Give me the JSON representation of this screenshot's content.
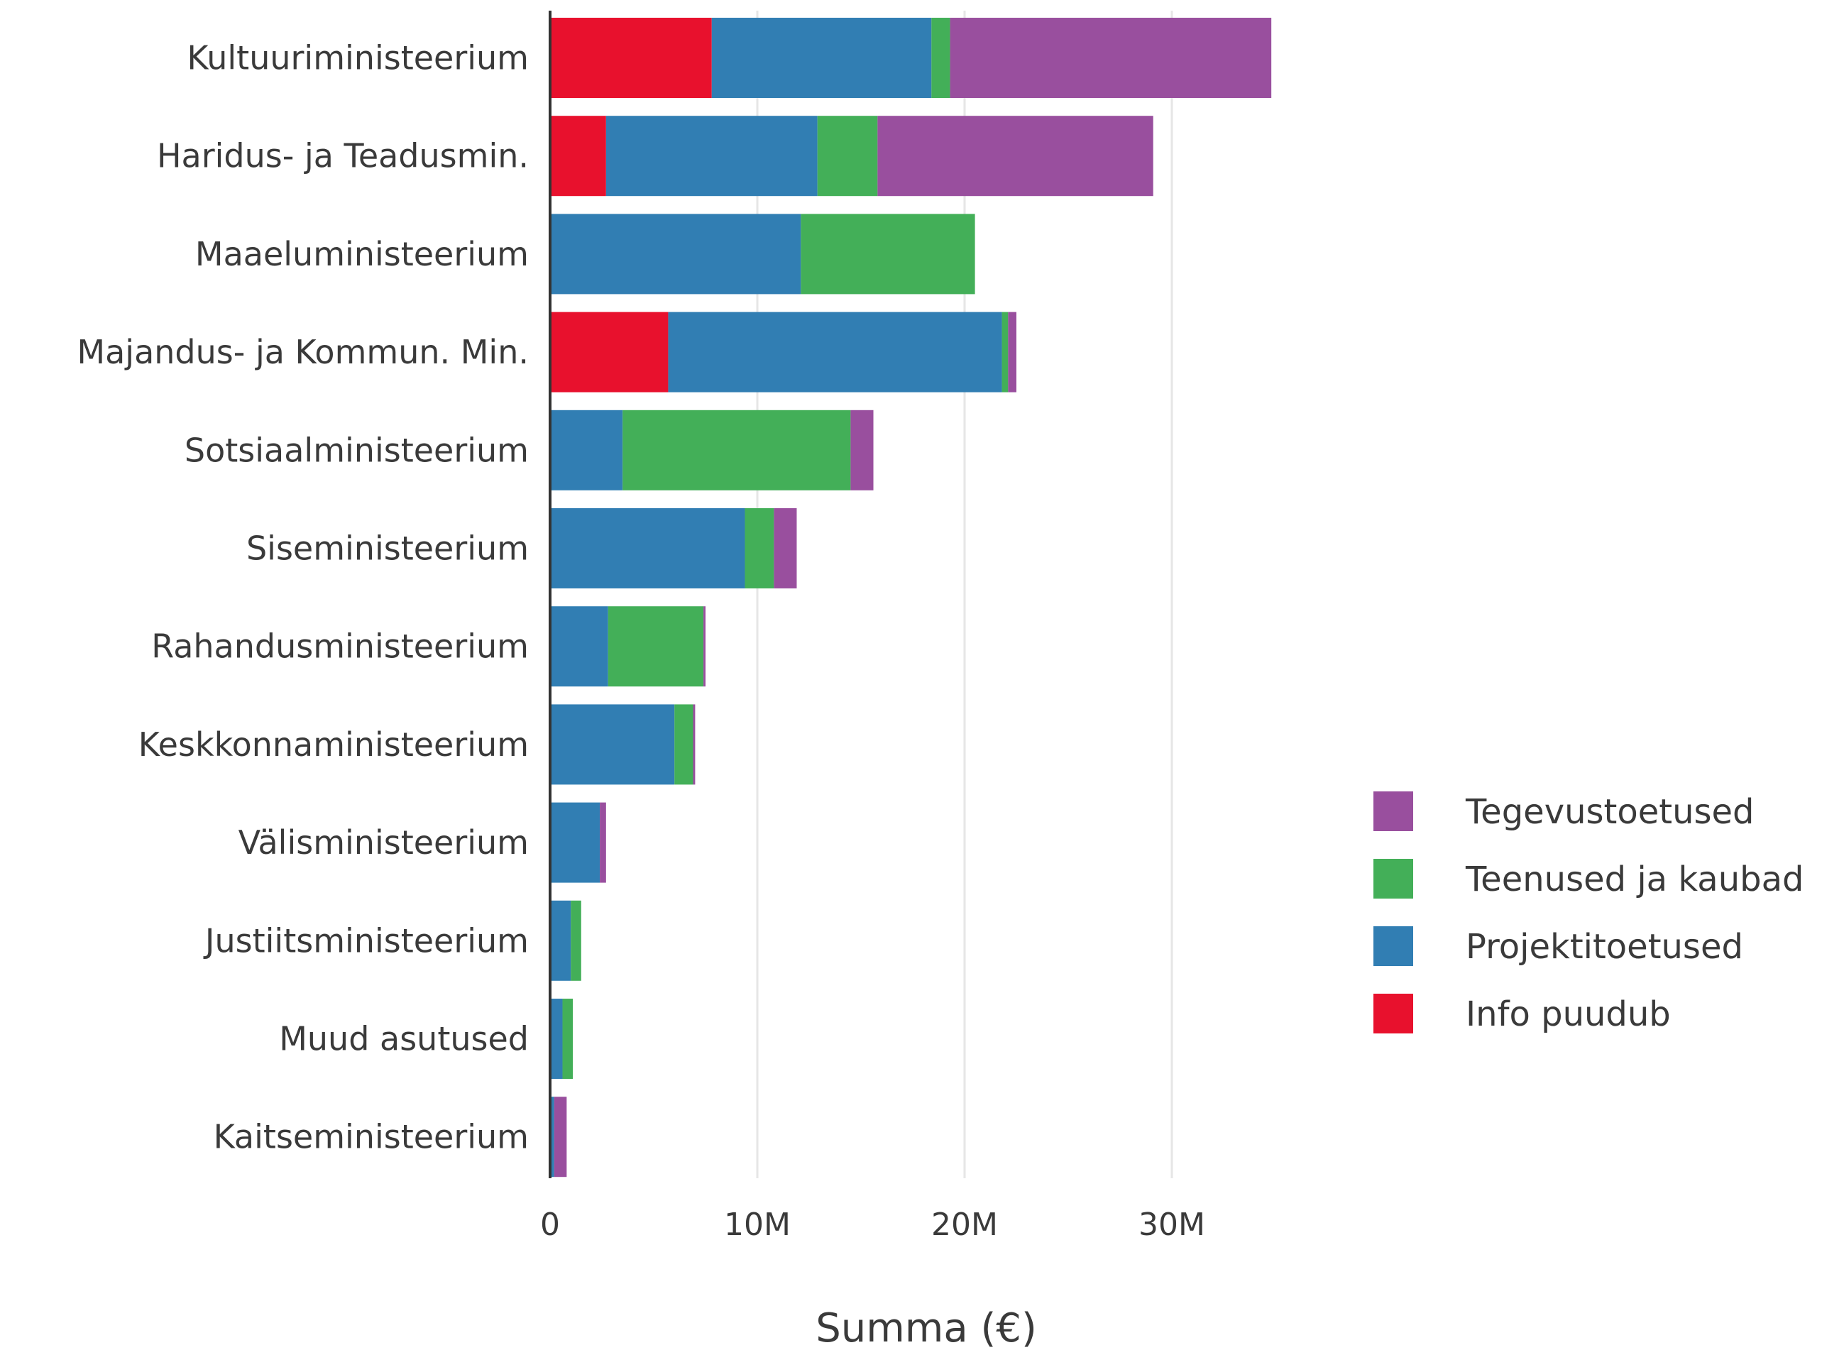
{
  "chart_data": {
    "type": "bar",
    "orientation": "horizontal",
    "stacked": true,
    "categories": [
      "Kultuuriministeerium",
      "Haridus- ja Teadusmin.",
      "Maaeluministeerium",
      "Majandus- ja Kommun. Min.",
      "Sotsiaalministeerium",
      "Siseministeerium",
      "Rahandusministeerium",
      "Keskkonnaministeerium",
      "Välisministeerium",
      "Justiitsministeerium",
      "Muud asutused",
      "Kaitseministeerium"
    ],
    "series": [
      {
        "name": "Info puudub",
        "color": "#E8112D",
        "values": [
          7.8,
          2.7,
          0,
          5.7,
          0,
          0,
          0,
          0,
          0,
          0,
          0,
          0
        ]
      },
      {
        "name": "Projektitoetused",
        "color": "#317EB3",
        "values": [
          10.6,
          10.2,
          12.1,
          16.1,
          3.5,
          9.4,
          2.8,
          6.0,
          2.4,
          1.0,
          0.6,
          0.2
        ]
      },
      {
        "name": "Teenused ja kaubad",
        "color": "#43AF58",
        "values": [
          0.9,
          2.9,
          8.4,
          0.3,
          11.0,
          1.4,
          4.6,
          0.9,
          0,
          0.5,
          0.5,
          0
        ]
      },
      {
        "name": "Tegevustoetused",
        "color": "#994F9E",
        "values": [
          15.5,
          13.3,
          0,
          0.4,
          1.1,
          1.1,
          0.1,
          0.1,
          0.3,
          0,
          0,
          0.6
        ]
      }
    ],
    "xlabel": "Summa (€)",
    "xlim": [
      0,
      40
    ],
    "x_ticks": [
      0,
      10,
      20,
      30
    ],
    "x_tick_labels": [
      "0",
      "10M",
      "20M",
      "30M"
    ],
    "grid": true,
    "legend": {
      "placement": "right",
      "order": [
        "Tegevustoetused",
        "Teenused ja kaubad",
        "Projektitoetused",
        "Info puudub"
      ]
    }
  }
}
